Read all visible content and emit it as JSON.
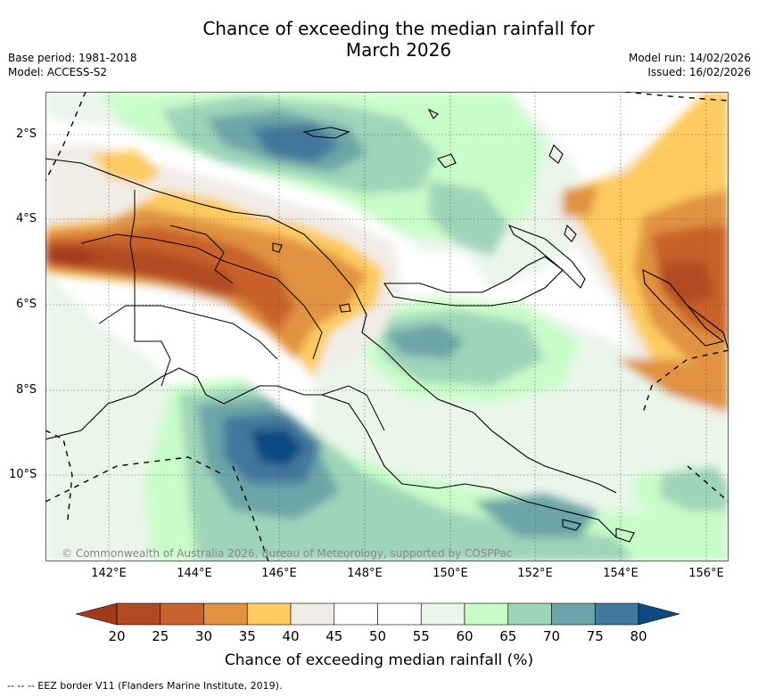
{
  "title_line1": "Chance of exceeding the median rainfall for",
  "title_line2": "March 2026",
  "base_period": "Base period: 1981-2018",
  "model": "Model: ACCESS-S2",
  "model_run": "Model run: 14/02/2026",
  "issued": "Issued: 16/02/2026",
  "lat_labels": [
    "2°S",
    "4°S",
    "6°S",
    "8°S",
    "10°S"
  ],
  "lon_labels": [
    "142°E",
    "144°E",
    "146°E",
    "148°E",
    "150°E",
    "152°E",
    "154°E",
    "156°E"
  ],
  "copyright": "© Commonwealth of Australia 2026, Bureau of Meteorology, supported by COSPPac",
  "colorbar": {
    "ticks": [
      "20",
      "25",
      "30",
      "35",
      "40",
      "45",
      "50",
      "55",
      "60",
      "65",
      "70",
      "75",
      "80"
    ],
    "title": "Chance of exceeding median rainfall (%)",
    "colors": [
      "#a33a1c",
      "#b24b24",
      "#c9622c",
      "#e0923f",
      "#fdcb60",
      "#f0ece6",
      "#ffffff",
      "#ffffff",
      "#eaf6ea",
      "#c8fcc8",
      "#9ed4b8",
      "#6ca5a7",
      "#42789c",
      "#0d4a83"
    ]
  },
  "eez_note": "-- -- -- EEZ border V11 (Flanders Marine Institute, 2019)."
}
